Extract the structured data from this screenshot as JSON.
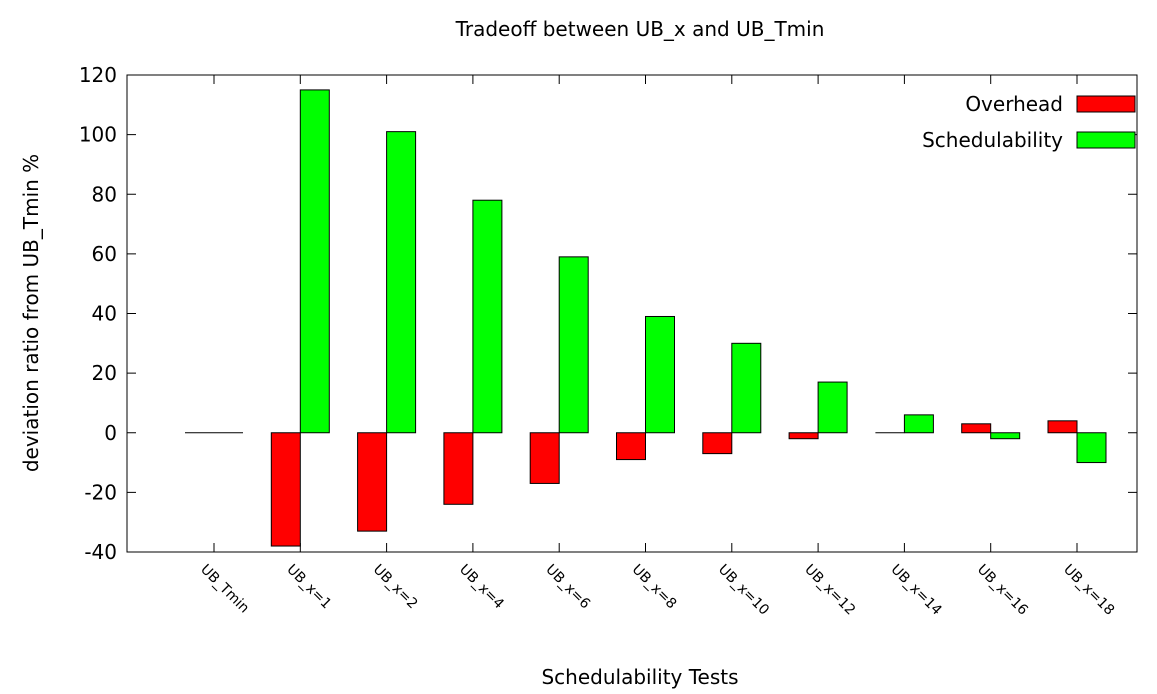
{
  "chart_data": {
    "type": "bar",
    "title": "Tradeoff between UB_x and UB_Tmin",
    "xlabel": "Schedulability Tests",
    "ylabel": "deviation ratio from UB_Tmin %",
    "categories": [
      "UB_Tmin",
      "UB_x=1",
      "UB_x=2",
      "UB_x=4",
      "UB_x=6",
      "UB_x=8",
      "UB_x=10",
      "UB_x=12",
      "UB_x=14",
      "UB_x=16",
      "UB_x=18"
    ],
    "series": [
      {
        "name": "Overhead",
        "color": "#ff0000",
        "values": [
          0,
          -38,
          -33,
          -24,
          -17,
          -9,
          -7,
          -2,
          0,
          3,
          4
        ]
      },
      {
        "name": "Schedulability",
        "color": "#00ff00",
        "values": [
          0,
          115,
          101,
          78,
          59,
          39,
          30,
          17,
          6,
          -2,
          -10
        ]
      }
    ],
    "ylim": [
      -40,
      120
    ],
    "yticks": [
      -40,
      -20,
      0,
      20,
      40,
      60,
      80,
      100,
      120
    ],
    "legend": "top-right",
    "grid": false
  }
}
